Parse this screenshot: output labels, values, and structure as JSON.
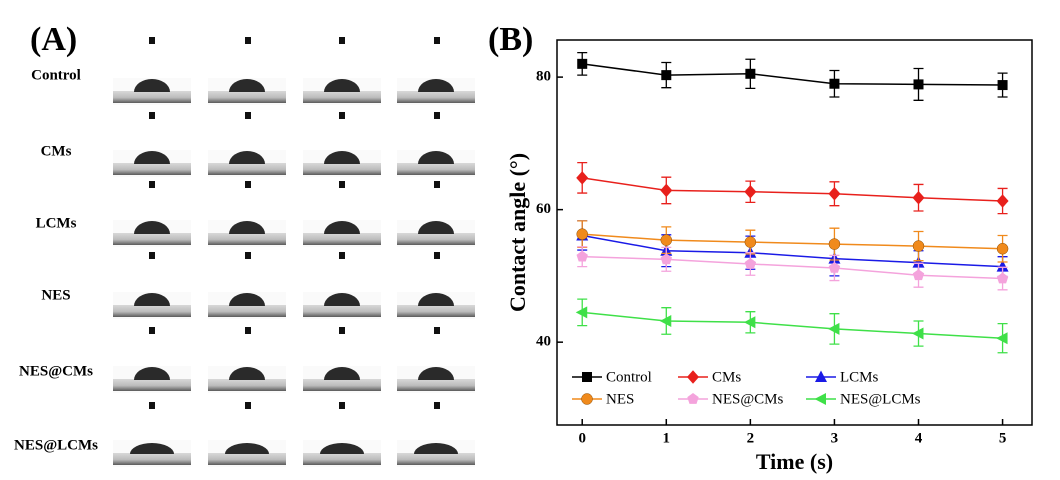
{
  "panel_a": {
    "label": "(A)",
    "rows": [
      "Control",
      "CMs",
      "LCMs",
      "NES",
      "NES@CMs",
      "NES@LCMs"
    ]
  },
  "chart_data": {
    "type": "line",
    "panel_label": "(B)",
    "x_label": "Time (s)",
    "y_label": "Contact angle (°)",
    "x": [
      0,
      1,
      2,
      3,
      4,
      5
    ],
    "xlim": [
      -0.3,
      5.35
    ],
    "xticks": [
      0,
      1,
      2,
      3,
      4,
      5
    ],
    "ylim": [
      27.5,
      85.6
    ],
    "yticks": [
      40,
      60,
      80
    ],
    "series": [
      {
        "name": "Control",
        "color": "#000000",
        "marker": "square",
        "values": [
          82.0,
          80.3,
          80.5,
          79.0,
          78.9,
          78.8
        ],
        "errors": [
          1.7,
          1.9,
          2.2,
          2.0,
          2.4,
          1.8
        ]
      },
      {
        "name": "CMs",
        "color": "#e8201c",
        "marker": "diamond",
        "values": [
          64.8,
          62.9,
          62.7,
          62.4,
          61.8,
          61.3
        ],
        "errors": [
          2.3,
          2.0,
          1.6,
          1.8,
          2.0,
          1.9
        ]
      },
      {
        "name": "LCMs",
        "color": "#1a1ae6",
        "marker": "triangle",
        "values": [
          56.1,
          53.8,
          53.5,
          52.6,
          52.0,
          51.4
        ],
        "errors": [
          2.2,
          2.4,
          2.5,
          2.6,
          1.8,
          1.5
        ]
      },
      {
        "name": "NES",
        "color": "#f08a1c",
        "marker": "circle",
        "values": [
          56.3,
          55.4,
          55.1,
          54.8,
          54.5,
          54.1
        ],
        "errors": [
          2.0,
          2.0,
          1.8,
          2.4,
          2.2,
          2.0
        ]
      },
      {
        "name": "NES@CMs",
        "color": "#f4a3dc",
        "marker": "pentagon",
        "values": [
          52.9,
          52.5,
          51.8,
          51.2,
          50.1,
          49.6
        ],
        "errors": [
          1.5,
          1.8,
          1.7,
          1.9,
          1.8,
          1.7
        ]
      },
      {
        "name": "NES@LCMs",
        "color": "#3fe048",
        "marker": "left-triangle",
        "values": [
          44.5,
          43.2,
          43.0,
          42.0,
          41.3,
          40.6
        ],
        "errors": [
          2.0,
          2.0,
          1.6,
          2.3,
          1.9,
          2.2
        ]
      }
    ]
  }
}
